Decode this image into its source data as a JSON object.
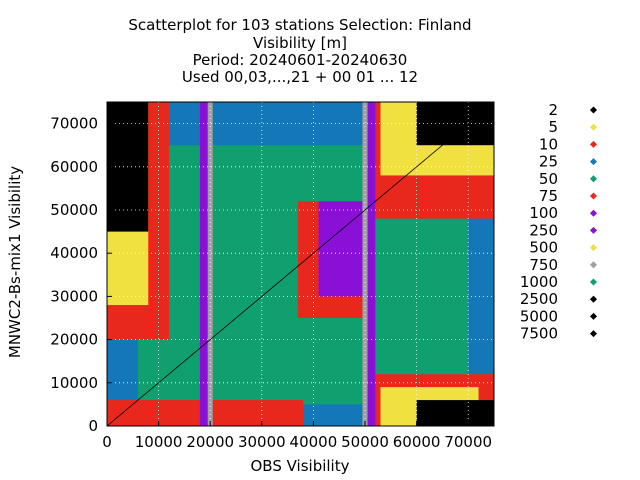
{
  "chart_data": {
    "type": "scatter",
    "title_lines": [
      "Scatterplot for  103 stations Selection: Finland",
      "Visibility [m]",
      "Period: 20240601-20240630",
      "Used 00,03,...,21 + 00 01 ... 12"
    ],
    "xlabel": "OBS Visibility",
    "ylabel": "MNWC2-Bs-mix1 Visibility",
    "xlim": [
      0,
      75000
    ],
    "ylim": [
      0,
      75000
    ],
    "x_ticks": [
      0,
      10000,
      20000,
      30000,
      40000,
      50000,
      60000,
      70000
    ],
    "x_tick_labels": [
      "0",
      "10000",
      "20000",
      "30000",
      "40000",
      "50000",
      "60000",
      "70000"
    ],
    "y_ticks": [
      0,
      10000,
      20000,
      30000,
      40000,
      50000,
      60000,
      70000
    ],
    "y_tick_labels": [
      "0",
      "10000",
      "20000",
      "30000",
      "40000",
      "50000",
      "60000",
      "70000"
    ],
    "grid": true,
    "diagonal": true,
    "legend_position": "right",
    "legend": [
      {
        "label": "2",
        "color": "#000000"
      },
      {
        "label": "5",
        "color": "#f0e040"
      },
      {
        "label": "10",
        "color": "#e8281c"
      },
      {
        "label": "25",
        "color": "#1478b8"
      },
      {
        "label": "50",
        "color": "#10a070"
      },
      {
        "label": "75",
        "color": "#e8281c"
      },
      {
        "label": "100",
        "color": "#8a10d8"
      },
      {
        "label": "250",
        "color": "#8a10d8"
      },
      {
        "label": "500",
        "color": "#f0e040"
      },
      {
        "label": "750",
        "color": "#a0a0a0"
      },
      {
        "label": "1000",
        "color": "#10a070"
      },
      {
        "label": "2500",
        "color": "#000000"
      },
      {
        "label": "5000",
        "color": "#000000"
      },
      {
        "label": "7500",
        "color": "#000000"
      }
    ],
    "density_regions": [
      {
        "count": 25,
        "color": "#1478b8",
        "x": [
          0,
          75000
        ],
        "y": [
          0,
          75000
        ]
      },
      {
        "count": 50,
        "color": "#10a070",
        "x": [
          6000,
          70000
        ],
        "y": [
          5000,
          65000
        ]
      },
      {
        "count": 75,
        "color": "#e8281c",
        "x": [
          37000,
          50000
        ],
        "y": [
          25000,
          52000
        ]
      },
      {
        "count": 250,
        "color": "#8a10d8",
        "x": [
          41000,
          50000
        ],
        "y": [
          30000,
          52000
        ]
      },
      {
        "count": 10,
        "color": "#e8281c",
        "x": [
          0,
          12000
        ],
        "y": [
          20000,
          75000
        ]
      },
      {
        "count": 10,
        "color": "#e8281c",
        "x": [
          52000,
          75000
        ],
        "y": [
          48000,
          75000
        ]
      },
      {
        "count": 10,
        "color": "#e8281c",
        "x": [
          0,
          38000
        ],
        "y": [
          0,
          6000
        ]
      },
      {
        "count": 10,
        "color": "#e8281c",
        "x": [
          52000,
          75000
        ],
        "y": [
          0,
          12000
        ]
      },
      {
        "count": 5,
        "color": "#f0e040",
        "x": [
          0,
          8000
        ],
        "y": [
          28000,
          75000
        ]
      },
      {
        "count": 5,
        "color": "#f0e040",
        "x": [
          53000,
          75000
        ],
        "y": [
          58000,
          75000
        ]
      },
      {
        "count": 5,
        "color": "#f0e040",
        "x": [
          53000,
          72000
        ],
        "y": [
          0,
          9000
        ]
      },
      {
        "count": 2,
        "color": "#000000",
        "x": [
          0,
          8000
        ],
        "y": [
          45000,
          75000
        ]
      },
      {
        "count": 2,
        "color": "#000000",
        "x": [
          60000,
          75000
        ],
        "y": [
          0,
          6000
        ]
      },
      {
        "count": 2,
        "color": "#000000",
        "x": [
          60000,
          75000
        ],
        "y": [
          65000,
          75000
        ]
      },
      {
        "count": 750,
        "color": "#a0a0a0",
        "x": [
          19500,
          20500
        ],
        "y": [
          0,
          75000
        ]
      },
      {
        "count": 750,
        "color": "#a0a0a0",
        "x": [
          49500,
          50500
        ],
        "y": [
          0,
          75000
        ]
      },
      {
        "count": 250,
        "color": "#8a10d8",
        "x": [
          18000,
          19500
        ],
        "y": [
          0,
          75000
        ]
      },
      {
        "count": 250,
        "color": "#8a10d8",
        "x": [
          50500,
          52000
        ],
        "y": [
          0,
          75000
        ]
      }
    ]
  }
}
